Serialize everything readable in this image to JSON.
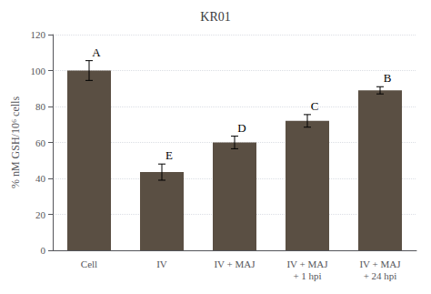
{
  "chart_data": {
    "type": "bar",
    "title": "KR01",
    "ylabel": "% nM GSH/10⁶ cells",
    "categories": [
      "Cell",
      "IV",
      "IV + MAJ",
      "IV + MAJ\n+ 1 hpi",
      "IV + MAJ\n+ 24 hpi"
    ],
    "values": [
      100,
      43.5,
      60.0,
      72.0,
      89.0
    ],
    "errors": [
      5.5,
      4.5,
      3.5,
      3.5,
      2.0
    ],
    "annotations": [
      "A",
      "E",
      "D",
      "C",
      "B"
    ],
    "color": "#5a4f43",
    "ylim": [
      0,
      120
    ],
    "yticks": [
      0,
      20,
      40,
      60,
      80,
      100,
      120
    ],
    "grid": true
  }
}
